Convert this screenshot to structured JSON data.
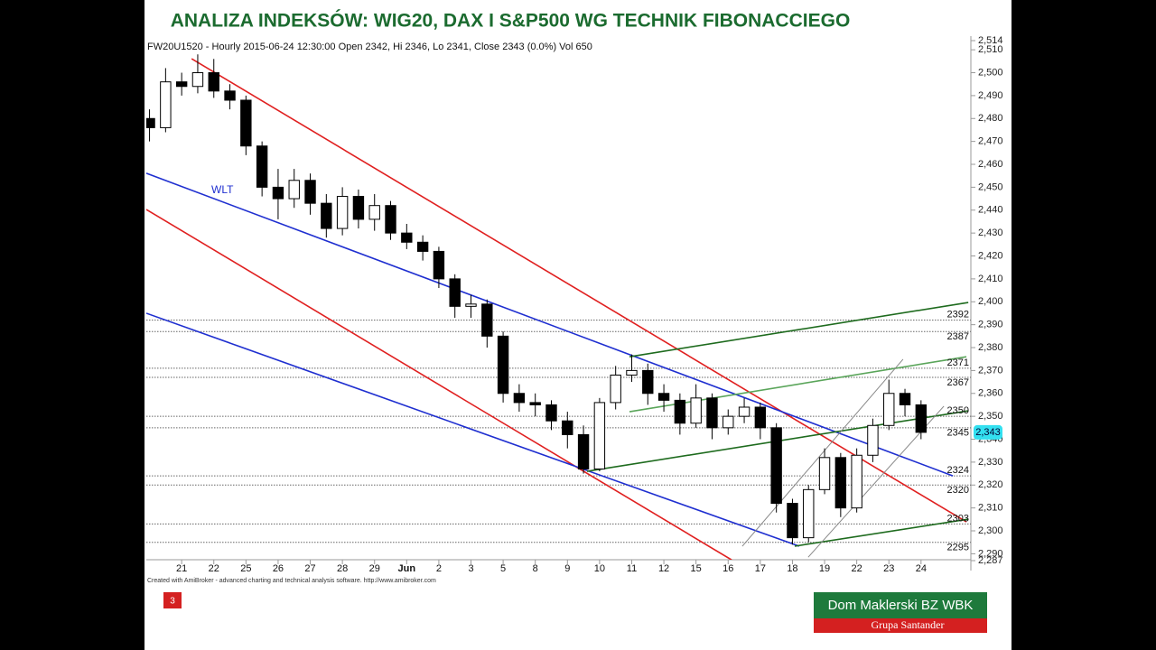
{
  "slide": {
    "title": "ANALIZA INDEKSÓW: WIG20, DAX I S&P500 WG TECHNIK FIBONACCIEGO",
    "footer_note": "Created with AmiBroker - advanced charting and technical analysis software. http://www.amibroker.com",
    "slide_number": "3",
    "logo": {
      "line1": "Dom Maklerski BZ WBK",
      "line2": "Grupa Santander"
    }
  },
  "chart_data": {
    "type": "candlestick",
    "header": "FW20U1520 - Hourly 2015-06-24 12:30:00 Open 2342, Hi 2346, Lo 2341, Close 2343 (0.0%) Vol 650",
    "annotation": "WLT",
    "up_color": "#ffffff",
    "down_color": "#000000",
    "x": [
      -1,
      -0.5,
      0,
      0.5,
      1,
      1.5,
      2,
      2.5,
      3,
      3.5,
      4,
      4.5,
      5,
      5.5,
      6,
      6.5,
      7,
      7.5,
      8,
      8.5,
      9,
      9.5,
      10,
      10.5,
      11,
      11.5,
      12,
      12.5,
      13,
      13.5,
      14,
      14.5,
      15,
      15.5,
      16,
      16.5,
      17,
      17.5,
      18,
      18.5,
      19,
      19.5,
      20,
      20.5,
      21,
      21.5,
      22,
      22.5,
      23
    ],
    "open": [
      2480,
      2476,
      2496,
      2494,
      2500,
      2492,
      2488,
      2468,
      2450,
      2445,
      2453,
      2443,
      2432,
      2446,
      2436,
      2442,
      2430,
      2426,
      2422,
      2410,
      2398,
      2399,
      2385,
      2360,
      2356,
      2355,
      2348,
      2342,
      2327,
      2356,
      2368,
      2370,
      2360,
      2357,
      2347,
      2358,
      2345,
      2350,
      2354,
      2345,
      2312,
      2297,
      2318,
      2332,
      2310,
      2333,
      2346,
      2360,
      2355
    ],
    "high": [
      2484,
      2502,
      2500,
      2508,
      2506,
      2495,
      2490,
      2470,
      2458,
      2458,
      2456,
      2447,
      2450,
      2449,
      2447,
      2444,
      2434,
      2429,
      2424,
      2412,
      2403,
      2401,
      2387,
      2364,
      2360,
      2357,
      2352,
      2346,
      2358,
      2372,
      2377,
      2373,
      2364,
      2360,
      2364,
      2360,
      2353,
      2358,
      2356,
      2347,
      2314,
      2320,
      2336,
      2334,
      2336,
      2349,
      2366,
      2362,
      2357
    ],
    "low": [
      2470,
      2474,
      2490,
      2491,
      2489,
      2484,
      2464,
      2446,
      2436,
      2441,
      2438,
      2428,
      2429,
      2432,
      2431,
      2427,
      2423,
      2418,
      2406,
      2393,
      2393,
      2380,
      2356,
      2352,
      2350,
      2344,
      2336,
      2325,
      2326,
      2353,
      2365,
      2355,
      2352,
      2342,
      2345,
      2340,
      2342,
      2347,
      2340,
      2308,
      2294,
      2295,
      2316,
      2306,
      2308,
      2330,
      2344,
      2350,
      2340
    ],
    "close": [
      2476,
      2496,
      2494,
      2500,
      2492,
      2488,
      2468,
      2450,
      2445,
      2453,
      2443,
      2432,
      2446,
      2436,
      2442,
      2430,
      2426,
      2422,
      2410,
      2398,
      2399,
      2385,
      2360,
      2356,
      2355,
      2348,
      2342,
      2327,
      2356,
      2368,
      2370,
      2360,
      2357,
      2347,
      2358,
      2345,
      2350,
      2354,
      2345,
      2312,
      2297,
      2318,
      2332,
      2310,
      2333,
      2346,
      2360,
      2355,
      2343
    ],
    "xlim": [
      -1.1,
      24.55
    ],
    "ylim": [
      2287,
      2514
    ],
    "xticks": [
      {
        "value": 0,
        "label": "21"
      },
      {
        "value": 1,
        "label": "22"
      },
      {
        "value": 2,
        "label": "25"
      },
      {
        "value": 3,
        "label": "26"
      },
      {
        "value": 4,
        "label": "27"
      },
      {
        "value": 5,
        "label": "28"
      },
      {
        "value": 6,
        "label": "29"
      },
      {
        "value": 7,
        "label": "Jun"
      },
      {
        "value": 8,
        "label": "2"
      },
      {
        "value": 9,
        "label": "3"
      },
      {
        "value": 10,
        "label": "5"
      },
      {
        "value": 11,
        "label": "8"
      },
      {
        "value": 12,
        "label": "9"
      },
      {
        "value": 13,
        "label": "10"
      },
      {
        "value": 14,
        "label": "11"
      },
      {
        "value": 15,
        "label": "12"
      },
      {
        "value": 16,
        "label": "15"
      },
      {
        "value": 17,
        "label": "16"
      },
      {
        "value": 18,
        "label": "17"
      },
      {
        "value": 19,
        "label": "18"
      },
      {
        "value": 20,
        "label": "19"
      },
      {
        "value": 21,
        "label": "22"
      },
      {
        "value": 22,
        "label": "23"
      },
      {
        "value": 23,
        "label": "24"
      }
    ],
    "yticks": [
      {
        "value": 2287,
        "label": "2,287"
      },
      {
        "value": 2290,
        "label": "2,290"
      },
      {
        "value": 2300,
        "label": "2,300"
      },
      {
        "value": 2310,
        "label": "2,310"
      },
      {
        "value": 2320,
        "label": "2,320"
      },
      {
        "value": 2330,
        "label": "2,330"
      },
      {
        "value": 2340,
        "label": "2,340"
      },
      {
        "value": 2350,
        "label": "2,350"
      },
      {
        "value": 2360,
        "label": "2,360"
      },
      {
        "value": 2370,
        "label": "2,370"
      },
      {
        "value": 2380,
        "label": "2,380"
      },
      {
        "value": 2390,
        "label": "2,390"
      },
      {
        "value": 2400,
        "label": "2,400"
      },
      {
        "value": 2410,
        "label": "2,410"
      },
      {
        "value": 2420,
        "label": "2,420"
      },
      {
        "value": 2430,
        "label": "2,430"
      },
      {
        "value": 2440,
        "label": "2,440"
      },
      {
        "value": 2450,
        "label": "2,450"
      },
      {
        "value": 2460,
        "label": "2,460"
      },
      {
        "value": 2470,
        "label": "2,470"
      },
      {
        "value": 2480,
        "label": "2,480"
      },
      {
        "value": 2490,
        "label": "2,490"
      },
      {
        "value": 2500,
        "label": "2,500"
      },
      {
        "value": 2510,
        "label": "2,510"
      },
      {
        "value": 2514,
        "label": "2,514"
      }
    ],
    "levels": [
      2392,
      2387,
      2371,
      2367,
      2350,
      2345,
      2324,
      2320,
      2303,
      2295
    ],
    "last_price": {
      "value": 2343,
      "label": "2,343"
    },
    "trend_lines": [
      {
        "color": "#e02020",
        "x": [
          0.31,
          24.41
        ],
        "values": [
          2506.1,
          2303.9
        ]
      },
      {
        "color": "#e02020",
        "x": [
          -1.1,
          17.11
        ],
        "values": [
          2440.3,
          2287.3
        ]
      },
      {
        "color": "#1f2fd0",
        "x": [
          -1.1,
          23.99
        ],
        "values": [
          2456.1,
          2324.0
        ]
      },
      {
        "color": "#1f2fd0",
        "x": [
          -1.1,
          19.21
        ],
        "values": [
          2395.0,
          2293.3
        ]
      },
      {
        "color": "#1e6b1e",
        "x": [
          12.61,
          24.47
        ],
        "values": [
          2326.0,
          2352.4
        ]
      },
      {
        "color": "#1e6b1e",
        "x": [
          13.93,
          24.47
        ],
        "values": [
          2376.0,
          2399.7
        ]
      },
      {
        "color": "#5aa55a",
        "x": [
          13.93,
          24.41
        ],
        "values": [
          2352.0,
          2376.0
        ]
      },
      {
        "color": "#1e6b1e",
        "x": [
          19.07,
          24.47
        ],
        "values": [
          2293.3,
          2305.1
        ]
      },
      {
        "color": "#888888",
        "x": [
          17.44,
          22.44
        ],
        "values": [
          2293.3,
          2374.9
        ]
      },
      {
        "color": "#888888",
        "x": [
          19.49,
          23.71
        ],
        "values": [
          2288.5,
          2354.4
        ]
      }
    ]
  }
}
